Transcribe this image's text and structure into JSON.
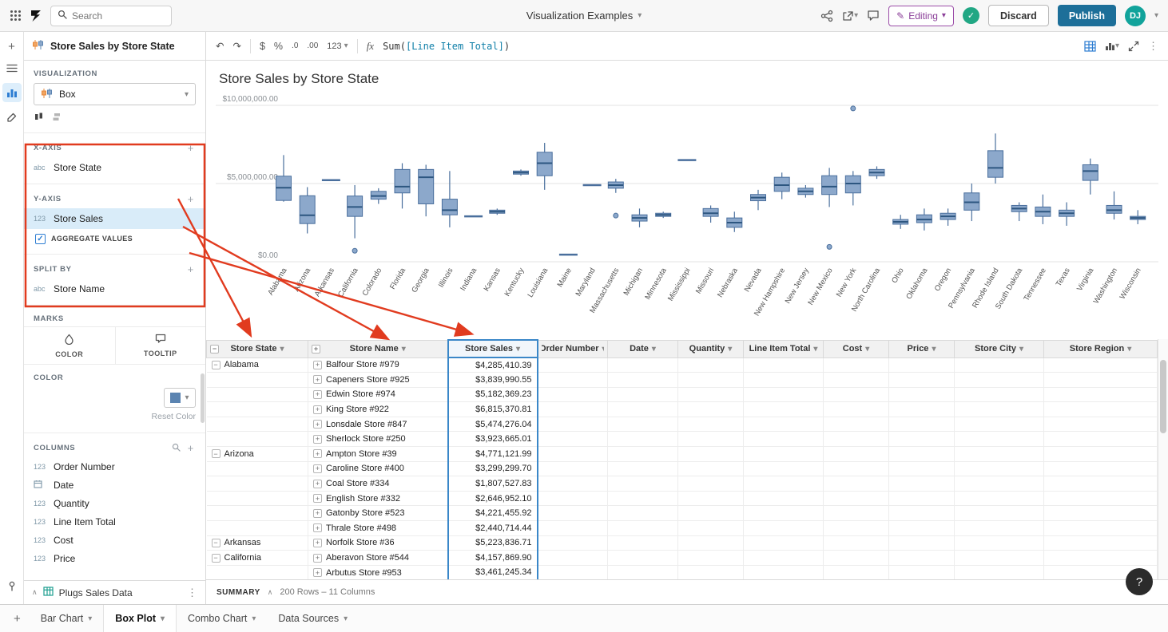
{
  "topbar": {
    "search_placeholder": "Search",
    "doc_title": "Visualization Examples",
    "editing_label": "Editing",
    "discard_label": "Discard",
    "publish_label": "Publish",
    "avatar_initials": "DJ"
  },
  "icons": {
    "undo": "↶",
    "redo": "↷",
    "caret_down": "▾",
    "chevron_up": "∧",
    "plus": "+",
    "minus": "−",
    "kebab": "⋮",
    "check": "✓",
    "help": "?",
    "pencil": "✎",
    "dollar": "$",
    "percent": "%",
    "dec_decrease": ".0",
    "dec_increase": ".00",
    "number_format": "123",
    "fx": "fx"
  },
  "sidebar": {
    "panel_title": "Store Sales by Store State",
    "visualization": {
      "label": "VISUALIZATION",
      "type_value": "Box"
    },
    "sections": {
      "x_axis": {
        "label": "X-AXIS",
        "fields": [
          {
            "icon": "abc",
            "name": "Store State"
          }
        ]
      },
      "y_axis": {
        "label": "Y-AXIS",
        "fields": [
          {
            "icon": "123",
            "name": "Store Sales",
            "selected": true
          }
        ],
        "aggregate_label": "AGGREGATE VALUES",
        "aggregate_checked": true
      },
      "split_by": {
        "label": "SPLIT BY",
        "fields": [
          {
            "icon": "abc",
            "name": "Store Name"
          }
        ]
      }
    },
    "marks": {
      "label": "MARKS",
      "tabs": [
        {
          "label": "COLOR"
        },
        {
          "label": "TOOLTIP"
        }
      ]
    },
    "color_section": {
      "label": "COLOR",
      "reset_label": "Reset Color",
      "swatch_color": "#5b84b1"
    },
    "columns_section": {
      "label": "COLUMNS",
      "items": [
        {
          "icon": "123",
          "name": "Order Number"
        },
        {
          "icon": "date",
          "name": "Date"
        },
        {
          "icon": "123",
          "name": "Quantity"
        },
        {
          "icon": "123",
          "name": "Line Item Total"
        },
        {
          "icon": "123",
          "name": "Cost"
        },
        {
          "icon": "123",
          "name": "Price"
        }
      ]
    },
    "datasource": {
      "name": "Plugs Sales Data"
    }
  },
  "formula_bar": {
    "formula_prefix": "Sum(",
    "formula_ref": "[Line Item Total]",
    "formula_suffix": ")"
  },
  "chart_data": {
    "type": "box",
    "title": "Store Sales by Store State",
    "unit": "USD millions",
    "ylim_millions": [
      0,
      10
    ],
    "ytick_values": [
      0,
      5,
      10
    ],
    "ytick_labels": [
      "$0.00",
      "$5,000,000.00",
      "$10,000,000.00"
    ],
    "boxes": [
      {
        "state": "Alabama",
        "min": 3.84,
        "q1": 3.92,
        "med": 4.73,
        "q3": 5.47,
        "max": 6.82
      },
      {
        "state": "Arizona",
        "min": 1.81,
        "q1": 2.44,
        "med": 2.97,
        "q3": 4.22,
        "max": 4.77
      },
      {
        "state": "Arkansas",
        "min": 5.22,
        "q1": 5.22,
        "med": 5.22,
        "q3": 5.22,
        "max": 5.22
      },
      {
        "state": "California",
        "min": 1.5,
        "q1": 2.9,
        "med": 3.5,
        "q3": 4.2,
        "max": 4.9,
        "outliers": [
          0.7
        ]
      },
      {
        "state": "Colorado",
        "min": 3.7,
        "q1": 4.0,
        "med": 4.2,
        "q3": 4.5,
        "max": 4.7
      },
      {
        "state": "Florida",
        "min": 3.4,
        "q1": 4.4,
        "med": 4.8,
        "q3": 5.9,
        "max": 6.3
      },
      {
        "state": "Georgia",
        "min": 2.9,
        "q1": 3.7,
        "med": 5.4,
        "q3": 5.9,
        "max": 6.2
      },
      {
        "state": "Illinois",
        "min": 2.2,
        "q1": 3.0,
        "med": 3.3,
        "q3": 4.0,
        "max": 5.8
      },
      {
        "state": "Indiana",
        "min": 2.9,
        "q1": 2.9,
        "med": 2.9,
        "q3": 2.9,
        "max": 2.9
      },
      {
        "state": "Kansas",
        "min": 3.0,
        "q1": 3.1,
        "med": 3.2,
        "q3": 3.3,
        "max": 3.4
      },
      {
        "state": "Kentucky",
        "min": 5.5,
        "q1": 5.6,
        "med": 5.7,
        "q3": 5.8,
        "max": 5.9
      },
      {
        "state": "Louisiana",
        "min": 4.6,
        "q1": 5.5,
        "med": 6.3,
        "q3": 7.0,
        "max": 7.6
      },
      {
        "state": "Maine",
        "min": 0.45,
        "q1": 0.45,
        "med": 0.45,
        "q3": 0.45,
        "max": 0.45
      },
      {
        "state": "Maryland",
        "min": 4.9,
        "q1": 4.9,
        "med": 4.9,
        "q3": 4.9,
        "max": 4.9
      },
      {
        "state": "Massachusetts",
        "min": 4.4,
        "q1": 4.7,
        "med": 4.9,
        "q3": 5.1,
        "max": 5.3,
        "outliers": [
          2.95
        ]
      },
      {
        "state": "Michigan",
        "min": 2.2,
        "q1": 2.6,
        "med": 2.8,
        "q3": 3.0,
        "max": 3.4
      },
      {
        "state": "Minnesota",
        "min": 2.8,
        "q1": 2.9,
        "med": 3.0,
        "q3": 3.1,
        "max": 3.2
      },
      {
        "state": "Mississippi",
        "min": 6.5,
        "q1": 6.5,
        "med": 6.5,
        "q3": 6.5,
        "max": 6.5
      },
      {
        "state": "Missouri",
        "min": 2.5,
        "q1": 2.9,
        "med": 3.1,
        "q3": 3.4,
        "max": 3.6
      },
      {
        "state": "Nebraska",
        "min": 1.9,
        "q1": 2.2,
        "med": 2.5,
        "q3": 2.8,
        "max": 3.2
      },
      {
        "state": "Nevada",
        "min": 3.3,
        "q1": 3.9,
        "med": 4.1,
        "q3": 4.3,
        "max": 4.6
      },
      {
        "state": "New Hampshire",
        "min": 4.0,
        "q1": 4.5,
        "med": 4.9,
        "q3": 5.4,
        "max": 5.7
      },
      {
        "state": "New Jersey",
        "min": 4.1,
        "q1": 4.3,
        "med": 4.5,
        "q3": 4.7,
        "max": 4.9
      },
      {
        "state": "New Mexico",
        "min": 3.5,
        "q1": 4.3,
        "med": 4.8,
        "q3": 5.5,
        "max": 6.0,
        "outliers": [
          0.95
        ]
      },
      {
        "state": "New York",
        "min": 3.6,
        "q1": 4.4,
        "med": 5.0,
        "q3": 5.5,
        "max": 5.8,
        "outliers": [
          9.8
        ]
      },
      {
        "state": "North Carolina",
        "min": 5.3,
        "q1": 5.5,
        "med": 5.7,
        "q3": 5.9,
        "max": 6.1
      },
      {
        "state": "Ohio",
        "min": 2.1,
        "q1": 2.4,
        "med": 2.55,
        "q3": 2.7,
        "max": 3.0
      },
      {
        "state": "Oklahoma",
        "min": 2.0,
        "q1": 2.5,
        "med": 2.7,
        "q3": 3.0,
        "max": 3.4
      },
      {
        "state": "Oregon",
        "min": 2.3,
        "q1": 2.7,
        "med": 2.9,
        "q3": 3.1,
        "max": 3.4
      },
      {
        "state": "Pennsylvania",
        "min": 2.6,
        "q1": 3.3,
        "med": 3.8,
        "q3": 4.4,
        "max": 5.0
      },
      {
        "state": "Rhode Island",
        "min": 5.0,
        "q1": 5.4,
        "med": 6.0,
        "q3": 7.1,
        "max": 8.2
      },
      {
        "state": "South Dakota",
        "min": 2.6,
        "q1": 3.2,
        "med": 3.4,
        "q3": 3.6,
        "max": 3.8
      },
      {
        "state": "Tennessee",
        "min": 2.4,
        "q1": 2.9,
        "med": 3.2,
        "q3": 3.5,
        "max": 4.3
      },
      {
        "state": "Texas",
        "min": 2.3,
        "q1": 2.9,
        "med": 3.1,
        "q3": 3.3,
        "max": 3.8
      },
      {
        "state": "Virginia",
        "min": 4.3,
        "q1": 5.2,
        "med": 5.8,
        "q3": 6.2,
        "max": 6.6
      },
      {
        "state": "Washington",
        "min": 2.7,
        "q1": 3.1,
        "med": 3.3,
        "q3": 3.6,
        "max": 4.5
      },
      {
        "state": "Wisconsin",
        "min": 2.4,
        "q1": 2.7,
        "med": 2.8,
        "q3": 2.9,
        "max": 3.3
      }
    ]
  },
  "table": {
    "columns": [
      {
        "label": "Store State",
        "group_icon": "minus"
      },
      {
        "label": "Store Name",
        "group_icon": "plus"
      },
      {
        "label": "Store Sales",
        "selected": true
      },
      {
        "label": "Order Number"
      },
      {
        "label": "Date"
      },
      {
        "label": "Quantity"
      },
      {
        "label": "Line Item Total"
      },
      {
        "label": "Cost"
      },
      {
        "label": "Price"
      },
      {
        "label": "Store City"
      },
      {
        "label": "Store Region"
      }
    ],
    "groups": [
      {
        "state": "Alabama",
        "rows": [
          {
            "store": "Balfour Store #979",
            "sales": "$4,285,410.39"
          },
          {
            "store": "Capeners Store #925",
            "sales": "$3,839,990.55"
          },
          {
            "store": "Edwin Store #974",
            "sales": "$5,182,369.23"
          },
          {
            "store": "King Store #922",
            "sales": "$6,815,370.81"
          },
          {
            "store": "Lonsdale Store #847",
            "sales": "$5,474,276.04"
          },
          {
            "store": "Sherlock Store #250",
            "sales": "$3,923,665.01"
          }
        ]
      },
      {
        "state": "Arizona",
        "rows": [
          {
            "store": "Ampton Store #39",
            "sales": "$4,771,121.99"
          },
          {
            "store": "Caroline Store #400",
            "sales": "$3,299,299.70"
          },
          {
            "store": "Coal Store #334",
            "sales": "$1,807,527.83"
          },
          {
            "store": "English Store #332",
            "sales": "$2,646,952.10"
          },
          {
            "store": "Gatonby Store #523",
            "sales": "$4,221,455.92"
          },
          {
            "store": "Thrale Store #498",
            "sales": "$2,440,714.44"
          }
        ]
      },
      {
        "state": "Arkansas",
        "rows": [
          {
            "store": "Norfolk Store #36",
            "sales": "$5,223,836.71"
          }
        ]
      },
      {
        "state": "California",
        "rows": [
          {
            "store": "Aberavon Store #544",
            "sales": "$4,157,869.90"
          },
          {
            "store": "Arbutus Store #953",
            "sales": "$3,461,245.34"
          }
        ]
      }
    ]
  },
  "summary_bar": {
    "label": "SUMMARY",
    "info": "200 Rows – 11 Columns"
  },
  "bottom_tabs": {
    "tabs": [
      {
        "label": "Bar Chart"
      },
      {
        "label": "Box Plot",
        "active": true
      },
      {
        "label": "Combo Chart"
      },
      {
        "label": "Data Sources"
      }
    ]
  }
}
